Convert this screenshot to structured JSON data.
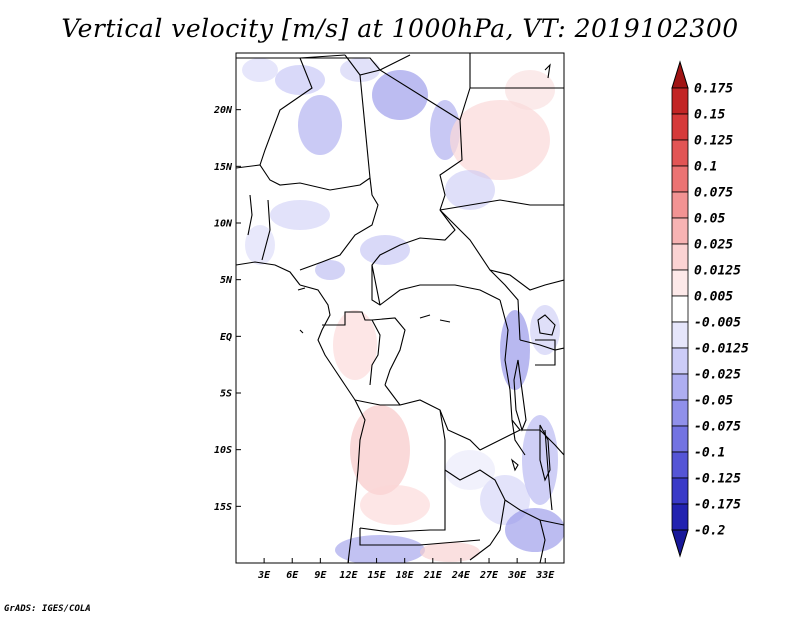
{
  "title": "Vertical velocity [m/s] at 1000hPa, VT: 2019102300",
  "footer": "GrADS: IGES/COLA",
  "map": {
    "lon_range": [
      0,
      35
    ],
    "lat_range": [
      -20,
      25
    ],
    "lat_ticks": [
      {
        "value": 20,
        "label": "20N"
      },
      {
        "value": 15,
        "label": "15N"
      },
      {
        "value": 10,
        "label": "10N"
      },
      {
        "value": 5,
        "label": "5N"
      },
      {
        "value": 0,
        "label": "EQ"
      },
      {
        "value": -5,
        "label": "5S"
      },
      {
        "value": -10,
        "label": "10S"
      },
      {
        "value": -15,
        "label": "15S"
      }
    ],
    "lon_ticks": [
      {
        "value": 3,
        "label": "3E"
      },
      {
        "value": 6,
        "label": "6E"
      },
      {
        "value": 9,
        "label": "9E"
      },
      {
        "value": 12,
        "label": "12E"
      },
      {
        "value": 15,
        "label": "15E"
      },
      {
        "value": 18,
        "label": "18E"
      },
      {
        "value": 21,
        "label": "21E"
      },
      {
        "value": 24,
        "label": "24E"
      },
      {
        "value": 27,
        "label": "27E"
      },
      {
        "value": 30,
        "label": "30E"
      },
      {
        "value": 33,
        "label": "33E"
      }
    ]
  },
  "colorbar": {
    "levels": [
      {
        "label": "0.175",
        "color": "#b01a1a"
      },
      {
        "label": "0.15",
        "color": "#c22525"
      },
      {
        "label": "0.125",
        "color": "#d63a3a"
      },
      {
        "label": "0.1",
        "color": "#e25555"
      },
      {
        "label": "0.075",
        "color": "#eb7373"
      },
      {
        "label": "0.05",
        "color": "#f29393"
      },
      {
        "label": "0.025",
        "color": "#f7b3b3"
      },
      {
        "label": "0.0125",
        "color": "#fbd3d3"
      },
      {
        "label": "0.005",
        "color": "#fde9e9"
      },
      {
        "label": "-0.005",
        "color": "#ffffff"
      },
      {
        "label": "-0.0125",
        "color": "#e6e6fb"
      },
      {
        "label": "-0.025",
        "color": "#ccccf7"
      },
      {
        "label": "-0.05",
        "color": "#aeaef1"
      },
      {
        "label": "-0.075",
        "color": "#9090ea"
      },
      {
        "label": "-0.1",
        "color": "#7373e2"
      },
      {
        "label": "-0.125",
        "color": "#5555d6"
      },
      {
        "label": "-0.175",
        "color": "#3a3ac8"
      },
      {
        "label": "-0.2",
        "color": "#2222b0"
      }
    ],
    "top_arrow_color": "#a01414",
    "bottom_arrow_color": "#18189a"
  }
}
